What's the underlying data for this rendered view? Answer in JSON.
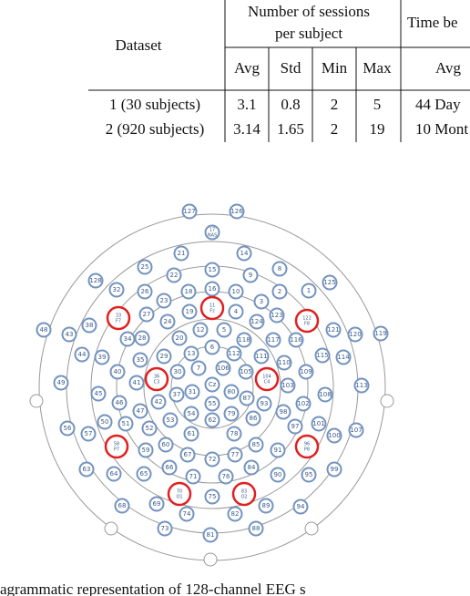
{
  "table": {
    "header": {
      "dataset": "Dataset",
      "group1": [
        "Number of sessions",
        "per subject"
      ],
      "group2": "Time be",
      "columns": [
        "Avg",
        "Std",
        "Min",
        "Max",
        "Avg"
      ]
    },
    "rows": [
      [
        "1 (30 subjects)",
        3.1,
        0.8,
        2,
        5,
        "44 Day"
      ],
      [
        "2 (920 subjects)",
        3.14,
        1.65,
        2,
        19,
        "10 Mont"
      ]
    ]
  },
  "electrodes": [
    {
      "label": "127"
    },
    {
      "label": "126"
    },
    {
      "label": "17",
      "site": "NAS"
    },
    {
      "label": "21"
    },
    {
      "label": "14"
    },
    {
      "label": "25"
    },
    {
      "label": "22"
    },
    {
      "label": "15"
    },
    {
      "label": "9"
    },
    {
      "label": "8"
    },
    {
      "label": "128"
    },
    {
      "label": "32"
    },
    {
      "label": "26"
    },
    {
      "label": "18"
    },
    {
      "label": "16"
    },
    {
      "label": "10"
    },
    {
      "label": "2"
    },
    {
      "label": "1"
    },
    {
      "label": "125"
    },
    {
      "label": "23"
    },
    {
      "label": "11",
      "site": "Fz"
    },
    {
      "label": "3"
    },
    {
      "label": "33",
      "site": "F7"
    },
    {
      "label": "27"
    },
    {
      "label": "24"
    },
    {
      "label": "19"
    },
    {
      "label": "4"
    },
    {
      "label": "124"
    },
    {
      "label": "123"
    },
    {
      "label": "122",
      "site": "F8"
    },
    {
      "label": "48"
    },
    {
      "label": "43"
    },
    {
      "label": "38"
    },
    {
      "label": "28"
    },
    {
      "label": "20"
    },
    {
      "label": "12"
    },
    {
      "label": "5"
    },
    {
      "label": "118"
    },
    {
      "label": "117"
    },
    {
      "label": "116"
    },
    {
      "label": "121"
    },
    {
      "label": "120"
    },
    {
      "label": "119"
    },
    {
      "label": "44"
    },
    {
      "label": "39"
    },
    {
      "label": "34"
    },
    {
      "label": "29"
    },
    {
      "label": "13"
    },
    {
      "label": "6"
    },
    {
      "label": "112"
    },
    {
      "label": "111"
    },
    {
      "label": "115"
    },
    {
      "label": "114"
    },
    {
      "label": "40"
    },
    {
      "label": "35"
    },
    {
      "label": "30"
    },
    {
      "label": "7"
    },
    {
      "label": "106"
    },
    {
      "label": "105"
    },
    {
      "label": "110"
    },
    {
      "label": "109"
    },
    {
      "label": "49"
    },
    {
      "label": "36",
      "site": "C3"
    },
    {
      "label": "104",
      "site": "C4"
    },
    {
      "label": "103"
    },
    {
      "label": "113"
    },
    {
      "label": "45"
    },
    {
      "label": "41"
    },
    {
      "label": "31"
    },
    {
      "label": "Cz"
    },
    {
      "label": "80"
    },
    {
      "label": "37"
    },
    {
      "label": "87"
    },
    {
      "label": "108"
    },
    {
      "label": "46"
    },
    {
      "label": "42"
    },
    {
      "label": "55"
    },
    {
      "label": "93"
    },
    {
      "label": "102"
    },
    {
      "label": "47"
    },
    {
      "label": "53"
    },
    {
      "label": "54"
    },
    {
      "label": "79"
    },
    {
      "label": "86"
    },
    {
      "label": "98"
    },
    {
      "label": "101"
    },
    {
      "label": "56"
    },
    {
      "label": "57"
    },
    {
      "label": "50"
    },
    {
      "label": "51"
    },
    {
      "label": "52"
    },
    {
      "label": "62"
    },
    {
      "label": "97"
    },
    {
      "label": "100"
    },
    {
      "label": "107"
    },
    {
      "label": "58",
      "site": "P7"
    },
    {
      "label": "59"
    },
    {
      "label": "60"
    },
    {
      "label": "61"
    },
    {
      "label": "78"
    },
    {
      "label": "85"
    },
    {
      "label": "91"
    },
    {
      "label": "96",
      "site": "P8"
    },
    {
      "label": "63"
    },
    {
      "label": "64"
    },
    {
      "label": "65"
    },
    {
      "label": "66"
    },
    {
      "label": "67"
    },
    {
      "label": "72"
    },
    {
      "label": "77"
    },
    {
      "label": "84"
    },
    {
      "label": "90"
    },
    {
      "label": "95"
    },
    {
      "label": "99"
    },
    {
      "label": "71"
    },
    {
      "label": "76"
    },
    {
      "label": "70",
      "site": "O1"
    },
    {
      "label": "75"
    },
    {
      "label": "83",
      "site": "O2"
    },
    {
      "label": "68"
    },
    {
      "label": "69"
    },
    {
      "label": "74"
    },
    {
      "label": "82"
    },
    {
      "label": "89"
    },
    {
      "label": "94"
    },
    {
      "label": "73"
    },
    {
      "label": "81"
    },
    {
      "label": "88"
    }
  ],
  "caption": "agrammatic representation of 128-channel EEG s"
}
